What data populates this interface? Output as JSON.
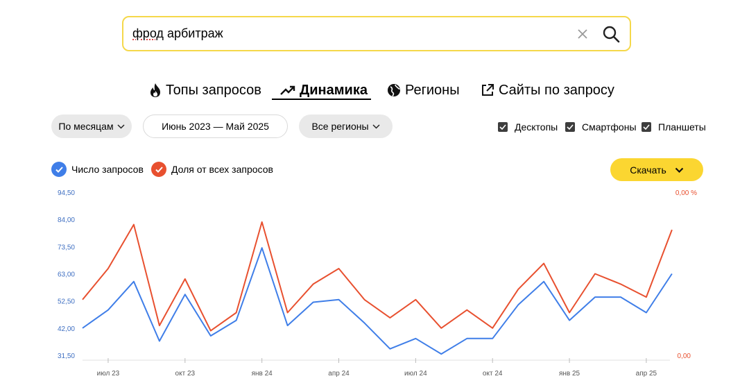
{
  "search": {
    "query_typo": "фрод",
    "query_rest": " арбитраж"
  },
  "tabs": [
    {
      "label": "Топы запросов",
      "icon": "fire-icon"
    },
    {
      "label": "Динамика",
      "icon": "trend-up-icon",
      "active": true
    },
    {
      "label": "Регионы",
      "icon": "globe-icon"
    },
    {
      "label": "Сайты по запросу",
      "icon": "external-link-icon"
    }
  ],
  "filters": {
    "grouping": "По месяцам",
    "period": "Июнь 2023 — Май 2025",
    "region": "Все регионы"
  },
  "devices": [
    {
      "label": "Десктопы",
      "checked": true
    },
    {
      "label": "Смартфоны",
      "checked": true
    },
    {
      "label": "Планшеты",
      "checked": true
    }
  ],
  "legend": [
    {
      "label": "Число запросов",
      "color": "#3f7ee8",
      "checked": true
    },
    {
      "label": "Доля от всех запросов",
      "color": "#e8502f",
      "checked": true
    }
  ],
  "download_label": "Скачать",
  "chart_data": {
    "type": "line",
    "x": [
      "2023-06",
      "2023-07",
      "2023-08",
      "2023-09",
      "2023-10",
      "2023-11",
      "2023-12",
      "2024-01",
      "2024-02",
      "2024-03",
      "2024-04",
      "2024-05",
      "2024-06",
      "2024-07",
      "2024-08",
      "2024-09",
      "2024-10",
      "2024-11",
      "2024-12",
      "2025-01",
      "2025-02",
      "2025-03",
      "2025-04",
      "2025-05"
    ],
    "x_tick_labels": [
      {
        "x": "2023-07",
        "label": "июл 23"
      },
      {
        "x": "2023-10",
        "label": "окт 23"
      },
      {
        "x": "2024-01",
        "label": "янв 24"
      },
      {
        "x": "2024-04",
        "label": "апр 24"
      },
      {
        "x": "2024-07",
        "label": "июл 24"
      },
      {
        "x": "2024-10",
        "label": "окт 24"
      },
      {
        "x": "2025-01",
        "label": "янв 25"
      },
      {
        "x": "2025-04",
        "label": "апр 25"
      }
    ],
    "y_left": {
      "ticks": [
        "31,50",
        "42,00",
        "52,50",
        "63,00",
        "73,50",
        "84,00",
        "94,50"
      ],
      "range": [
        31.5,
        94.5
      ]
    },
    "y_right": {
      "ticks": [
        "0,00",
        "0,00 %"
      ]
    },
    "series": [
      {
        "name": "Число запросов",
        "axis": "left",
        "color": "#3f7ee8",
        "values": [
          42,
          49,
          60,
          37,
          55,
          39,
          45,
          73,
          43,
          52,
          53,
          44,
          34,
          38,
          32,
          38,
          38,
          51,
          60,
          45,
          54,
          54,
          48,
          63
        ]
      },
      {
        "name": "Доля от всех запросов",
        "axis": "right",
        "color": "#e8502f",
        "values": [
          53,
          65,
          82,
          43,
          61,
          41,
          48,
          83,
          48,
          59,
          65,
          53,
          46,
          53,
          42,
          49,
          42,
          57,
          67,
          48,
          63,
          59,
          54,
          80
        ]
      }
    ]
  }
}
